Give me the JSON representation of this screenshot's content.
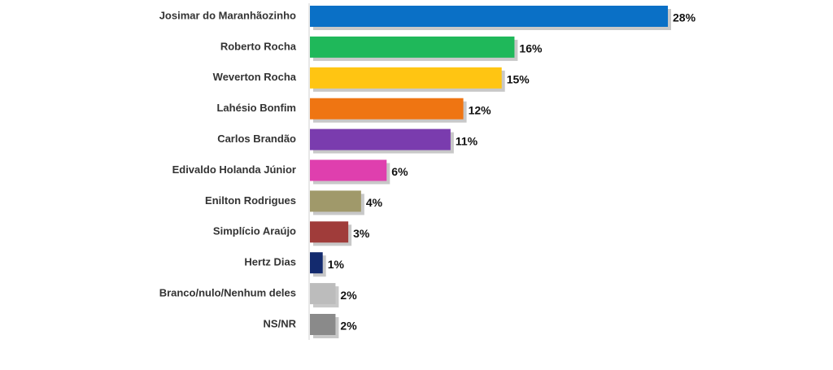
{
  "chart_data": {
    "type": "hbar",
    "categories": [
      "Josimar do Maranhãozinho",
      "Roberto Rocha",
      "Weverton Rocha",
      "Lahésio Bonfim",
      "Carlos Brandão",
      "Edivaldo Holanda Júnior",
      "Enilton Rodrigues",
      "Simplício Araújo",
      "Hertz Dias",
      "Branco/nulo/Nenhum deles",
      "NS/NR"
    ],
    "values": [
      28,
      16,
      15,
      12,
      11,
      6,
      4,
      3,
      1,
      2,
      2
    ],
    "value_labels": [
      "28%",
      "16%",
      "15%",
      "12%",
      "11%",
      "6%",
      "4%",
      "3%",
      "1%",
      "2%",
      "2%"
    ],
    "colors": [
      "#0a70c6",
      "#1fb85a",
      "#ffc512",
      "#ef7512",
      "#7a3cae",
      "#df3fae",
      "#a0996a",
      "#a03c3a",
      "#132a6e",
      "#bcbcbc",
      "#8a8a8a"
    ]
  }
}
